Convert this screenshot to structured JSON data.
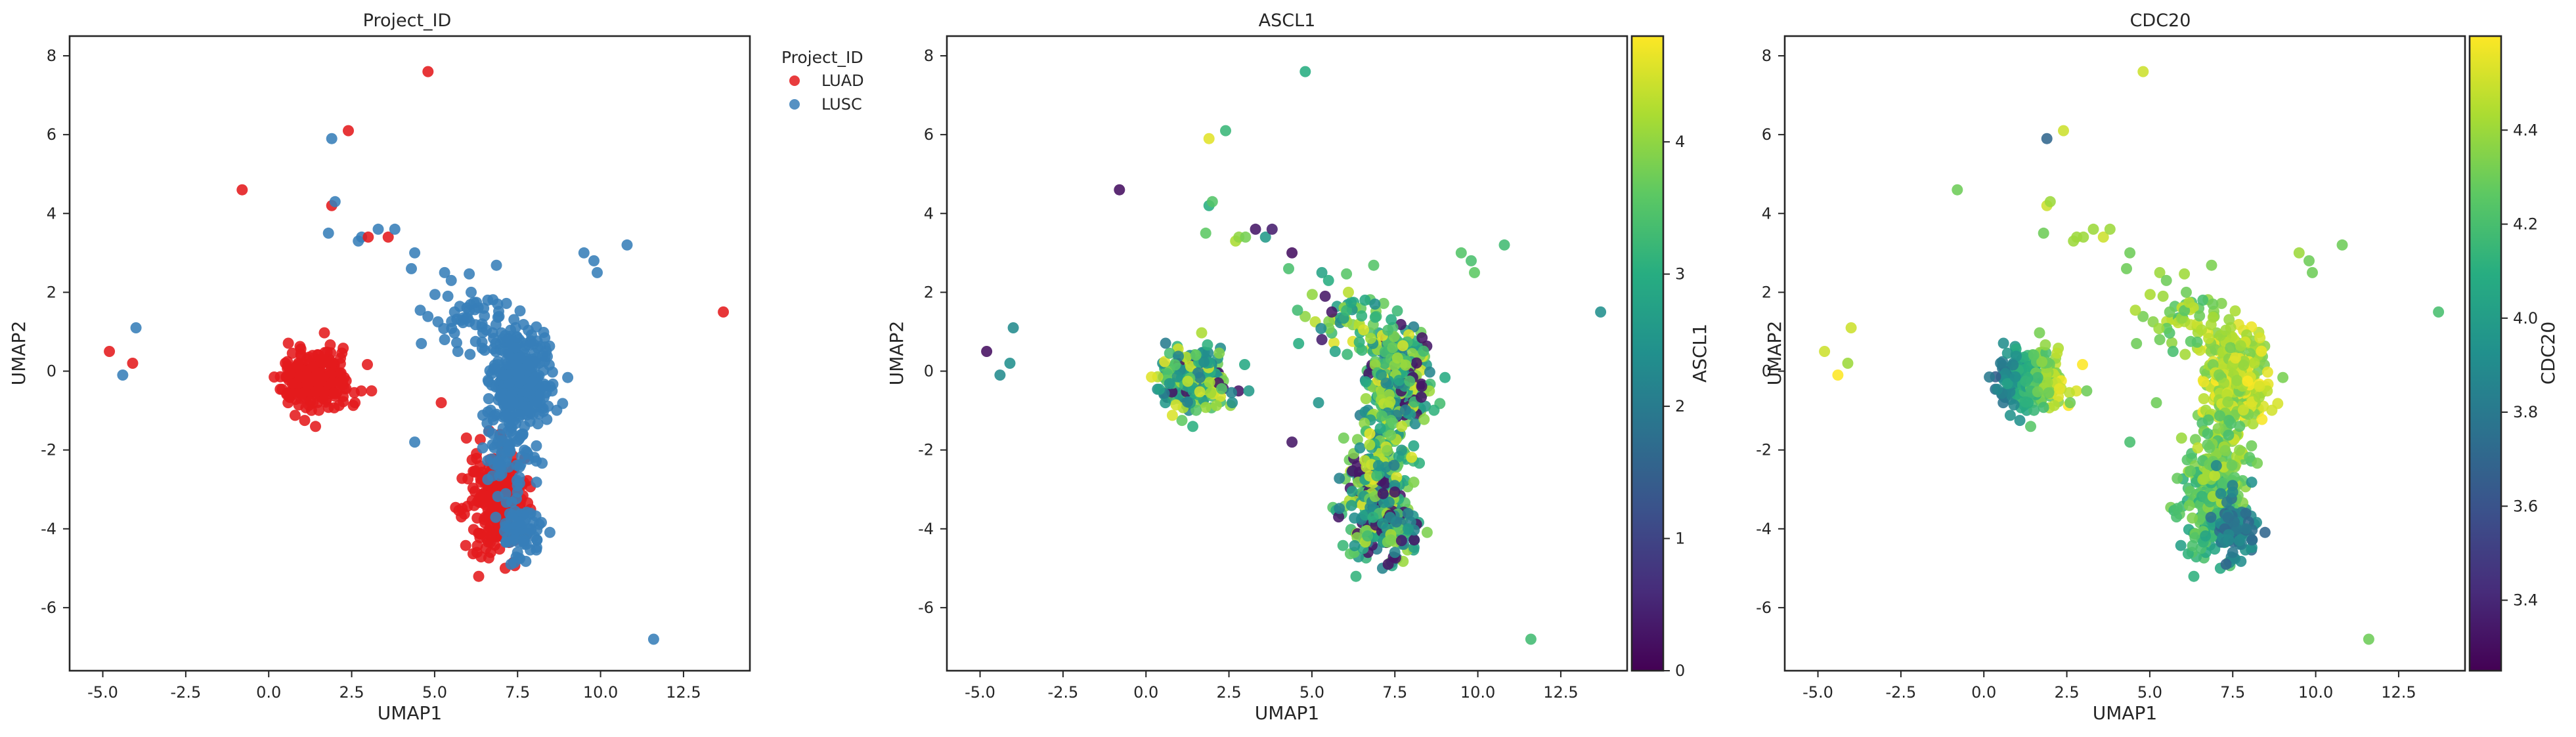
{
  "chart_data": [
    {
      "type": "scatter",
      "title": "Project_ID",
      "xlabel": "UMAP1",
      "ylabel": "UMAP2",
      "xlim": [
        -6.0,
        14.5
      ],
      "ylim": [
        -7.6,
        8.5
      ],
      "xticks": [
        "-5.0",
        "-2.5",
        "0.0",
        "2.5",
        "5.0",
        "7.5",
        "10.0",
        "12.5"
      ],
      "yticks": [
        "-6",
        "-4",
        "-2",
        "0",
        "2",
        "4",
        "6",
        "8"
      ],
      "color_by": "category",
      "legend": {
        "title": "Project_ID",
        "placement": "outside-right",
        "entries": [
          "LUAD",
          "LUSC"
        ]
      },
      "categories": [
        "LUAD",
        "LUSC"
      ],
      "category_colors": [
        "#e41a1c",
        "#377eb8"
      ],
      "grid": false
    },
    {
      "type": "scatter",
      "title": "ASCL1",
      "xlabel": "UMAP1",
      "ylabel": "UMAP2",
      "xlim": [
        -6.0,
        14.5
      ],
      "ylim": [
        -7.6,
        8.5
      ],
      "xticks": [
        "-5.0",
        "-2.5",
        "0.0",
        "2.5",
        "5.0",
        "7.5",
        "10.0",
        "12.5"
      ],
      "yticks": [
        "-6",
        "-4",
        "-2",
        "0",
        "2",
        "4",
        "6",
        "8"
      ],
      "color_by": "continuous",
      "colormap": "viridis",
      "colorbar": {
        "label": "ASCL1",
        "min": 0,
        "max": 4.8,
        "ticks": [
          "0",
          "1",
          "2",
          "3",
          "4"
        ]
      },
      "grid": false
    },
    {
      "type": "scatter",
      "title": "CDC20",
      "xlabel": "UMAP1",
      "ylabel": "UMAP2",
      "xlim": [
        -6.0,
        14.5
      ],
      "ylim": [
        -7.6,
        8.5
      ],
      "xticks": [
        "-5.0",
        "-2.5",
        "0.0",
        "2.5",
        "5.0",
        "7.5",
        "10.0",
        "12.5"
      ],
      "yticks": [
        "-6",
        "-4",
        "-2",
        "0",
        "2",
        "4",
        "6",
        "8"
      ],
      "color_by": "continuous",
      "colormap": "viridis",
      "colorbar": {
        "label": "CDC20",
        "min": 3.25,
        "max": 4.6,
        "ticks": [
          "3.4",
          "3.6",
          "3.8",
          "4.0",
          "4.2",
          "4.4"
        ]
      },
      "grid": false
    }
  ],
  "points": [
    {
      "x": 4.8,
      "y": 7.6,
      "group": "LUAD",
      "ascl1": 3.0,
      "cdc20": 4.5
    },
    {
      "x": 2.4,
      "y": 6.1,
      "group": "LUAD",
      "ascl1": 3.2,
      "cdc20": 4.5
    },
    {
      "x": 1.9,
      "y": 5.9,
      "group": "LUSC",
      "ascl1": 4.6,
      "cdc20": 3.7
    },
    {
      "x": -0.8,
      "y": 4.6,
      "group": "LUAD",
      "ascl1": 0.2,
      "cdc20": 4.3
    },
    {
      "x": 1.9,
      "y": 4.2,
      "group": "LUAD",
      "ascl1": 3.0,
      "cdc20": 4.5
    },
    {
      "x": 2.0,
      "y": 4.3,
      "group": "LUSC",
      "ascl1": 3.5,
      "cdc20": 4.4
    },
    {
      "x": 1.8,
      "y": 3.5,
      "group": "LUSC",
      "ascl1": 3.6,
      "cdc20": 4.3
    },
    {
      "x": 2.7,
      "y": 3.3,
      "group": "LUSC",
      "ascl1": 4.2,
      "cdc20": 4.4
    },
    {
      "x": 2.8,
      "y": 3.4,
      "group": "LUSC",
      "ascl1": 4.0,
      "cdc20": 4.4
    },
    {
      "x": 3.0,
      "y": 3.4,
      "group": "LUAD",
      "ascl1": 3.8,
      "cdc20": 4.4
    },
    {
      "x": 3.3,
      "y": 3.6,
      "group": "LUSC",
      "ascl1": 0.3,
      "cdc20": 4.4
    },
    {
      "x": 3.6,
      "y": 3.4,
      "group": "LUAD",
      "ascl1": 2.6,
      "cdc20": 4.5
    },
    {
      "x": 3.8,
      "y": 3.6,
      "group": "LUSC",
      "ascl1": 0.4,
      "cdc20": 4.4
    },
    {
      "x": 4.4,
      "y": 3.0,
      "group": "LUSC",
      "ascl1": 0.2,
      "cdc20": 4.3
    },
    {
      "x": 4.3,
      "y": 2.6,
      "group": "LUSC",
      "ascl1": 3.4,
      "cdc20": 4.3
    },
    {
      "x": 5.3,
      "y": 2.5,
      "group": "LUSC",
      "ascl1": 2.8,
      "cdc20": 4.4
    },
    {
      "x": 5.5,
      "y": 2.3,
      "group": "LUSC",
      "ascl1": 3.0,
      "cdc20": 4.3
    },
    {
      "x": 5.4,
      "y": 1.9,
      "group": "LUSC",
      "ascl1": 0.3,
      "cdc20": 4.4
    },
    {
      "x": 5.6,
      "y": 1.5,
      "group": "LUSC",
      "ascl1": 0.3,
      "cdc20": 4.3
    },
    {
      "x": 6.1,
      "y": 2.0,
      "group": "LUSC",
      "ascl1": 4.3,
      "cdc20": 4.3
    },
    {
      "x": 6.6,
      "y": 1.8,
      "group": "LUSC",
      "ascl1": 2.9,
      "cdc20": 4.2
    },
    {
      "x": 6.5,
      "y": 1.4,
      "group": "LUSC",
      "ascl1": 3.1,
      "cdc20": 4.3
    },
    {
      "x": 6.9,
      "y": 1.7,
      "group": "LUSC",
      "ascl1": 2.4,
      "cdc20": 4.3
    },
    {
      "x": 9.5,
      "y": 3.0,
      "group": "LUSC",
      "ascl1": 3.5,
      "cdc20": 4.4
    },
    {
      "x": 9.8,
      "y": 2.8,
      "group": "LUSC",
      "ascl1": 3.4,
      "cdc20": 4.3
    },
    {
      "x": 9.9,
      "y": 2.5,
      "group": "LUSC",
      "ascl1": 3.6,
      "cdc20": 4.3
    },
    {
      "x": 10.8,
      "y": 3.2,
      "group": "LUSC",
      "ascl1": 3.3,
      "cdc20": 4.3
    },
    {
      "x": 13.7,
      "y": 1.5,
      "group": "LUAD",
      "ascl1": 2.4,
      "cdc20": 4.2
    },
    {
      "x": 11.6,
      "y": -6.8,
      "group": "LUSC",
      "ascl1": 3.3,
      "cdc20": 4.3
    },
    {
      "x": -4.8,
      "y": 0.5,
      "group": "LUAD",
      "ascl1": 0.2,
      "cdc20": 4.5
    },
    {
      "x": -4.0,
      "y": 1.1,
      "group": "LUSC",
      "ascl1": 2.3,
      "cdc20": 4.5
    },
    {
      "x": -4.1,
      "y": 0.2,
      "group": "LUAD",
      "ascl1": 2.4,
      "cdc20": 4.4
    },
    {
      "x": -4.4,
      "y": -0.1,
      "group": "LUSC",
      "ascl1": 2.3,
      "cdc20": 4.6
    },
    {
      "x": 3.1,
      "y": -0.5,
      "group": "LUAD",
      "ascl1": 2.6,
      "cdc20": 4.3
    },
    {
      "x": 2.6,
      "y": -0.8,
      "group": "LUAD",
      "ascl1": 2.4,
      "cdc20": 4.3
    },
    {
      "x": 4.6,
      "y": 0.7,
      "group": "LUSC",
      "ascl1": 3.0,
      "cdc20": 4.3
    },
    {
      "x": 4.4,
      "y": -1.8,
      "group": "LUSC",
      "ascl1": 0.3,
      "cdc20": 4.2
    },
    {
      "x": 5.2,
      "y": -0.8,
      "group": "LUAD",
      "ascl1": 2.5,
      "cdc20": 4.3
    },
    {
      "x": 5.3,
      "y": 0.8,
      "group": "LUSC",
      "ascl1": 0.4,
      "cdc20": 4.3
    },
    {
      "x": 5.7,
      "y": 0.5,
      "group": "LUSC",
      "ascl1": 2.8,
      "cdc20": 4.2
    },
    {
      "x": 7.3,
      "y": -4.9,
      "group": "LUSC",
      "ascl1": 0.3,
      "cdc20": 3.7
    },
    {
      "x": 7.5,
      "y": -4.6,
      "group": "LUSC",
      "ascl1": 2.2,
      "cdc20": 3.8
    },
    {
      "x": 7.7,
      "y": -4.3,
      "group": "LUSC",
      "ascl1": 0.4,
      "cdc20": 3.9
    },
    {
      "x": 7.9,
      "y": -4.0,
      "group": "LUSC",
      "ascl1": 2.6,
      "cdc20": 3.8
    }
  ]
}
